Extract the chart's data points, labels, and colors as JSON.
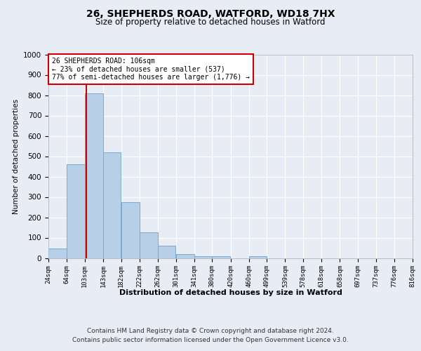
{
  "title1": "26, SHEPHERDS ROAD, WATFORD, WD18 7HX",
  "title2": "Size of property relative to detached houses in Watford",
  "xlabel": "Distribution of detached houses by size in Watford",
  "ylabel": "Number of detached properties",
  "footer1": "Contains HM Land Registry data © Crown copyright and database right 2024.",
  "footer2": "Contains public sector information licensed under the Open Government Licence v3.0.",
  "annotation_line1": "26 SHEPHERDS ROAD: 106sqm",
  "annotation_line2": "← 23% of detached houses are smaller (537)",
  "annotation_line3": "77% of semi-detached houses are larger (1,776) →",
  "bar_color": "#b8cfe8",
  "bar_edge_color": "#7aaad0",
  "vline_color": "#cc0000",
  "vline_x": 106,
  "bin_edges": [
    24,
    64,
    103,
    143,
    182,
    222,
    262,
    301,
    341,
    380,
    420,
    460,
    499,
    539,
    578,
    618,
    658,
    697,
    737,
    776,
    816
  ],
  "bar_values": [
    45,
    460,
    810,
    520,
    275,
    125,
    60,
    20,
    10,
    10,
    0,
    10,
    0,
    0,
    0,
    0,
    0,
    0,
    0,
    0
  ],
  "ylim": [
    0,
    1000
  ],
  "yticks": [
    0,
    100,
    200,
    300,
    400,
    500,
    600,
    700,
    800,
    900,
    1000
  ],
  "bg_color": "#e8edf5",
  "plot_bg_color": "#e8edf5",
  "grid_color": "#ffffff",
  "annotation_box_color": "#ffffff",
  "annotation_box_edge": "#cc0000"
}
